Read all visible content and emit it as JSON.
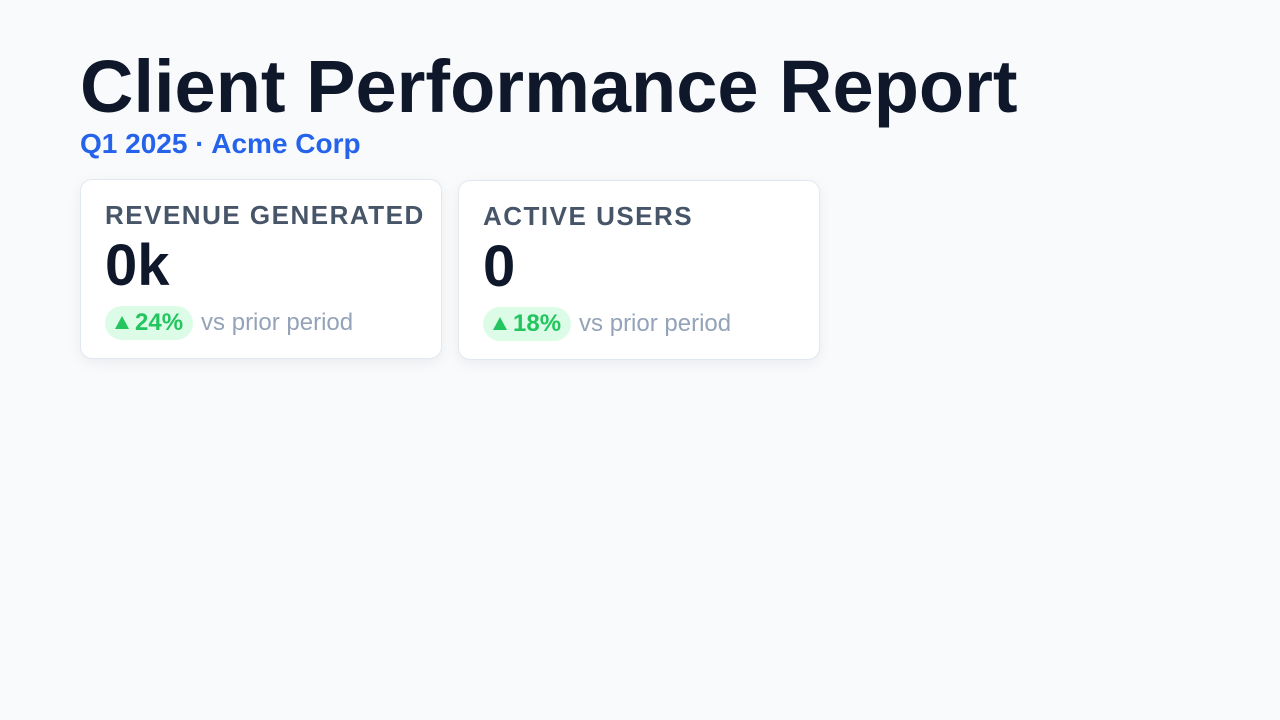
{
  "report": {
    "title": "Client Performance Report",
    "subtitle": "Q1 2025 · Acme Corp"
  },
  "cards": [
    {
      "label": "REVENUE GENERATED",
      "value": "0k",
      "trend": "24%",
      "trend_caption": "vs prior period",
      "trend_icon": "arrow-up-icon"
    },
    {
      "label": "ACTIVE USERS",
      "value": "0",
      "trend": "18%",
      "trend_caption": "vs prior period",
      "trend_icon": "arrow-up-icon"
    }
  ],
  "colors": {
    "title": "#0f172a",
    "accent": "#2563eb",
    "positive": "#22c55e",
    "positive_bg": "#dcfce7",
    "muted": "#94a3b8"
  }
}
